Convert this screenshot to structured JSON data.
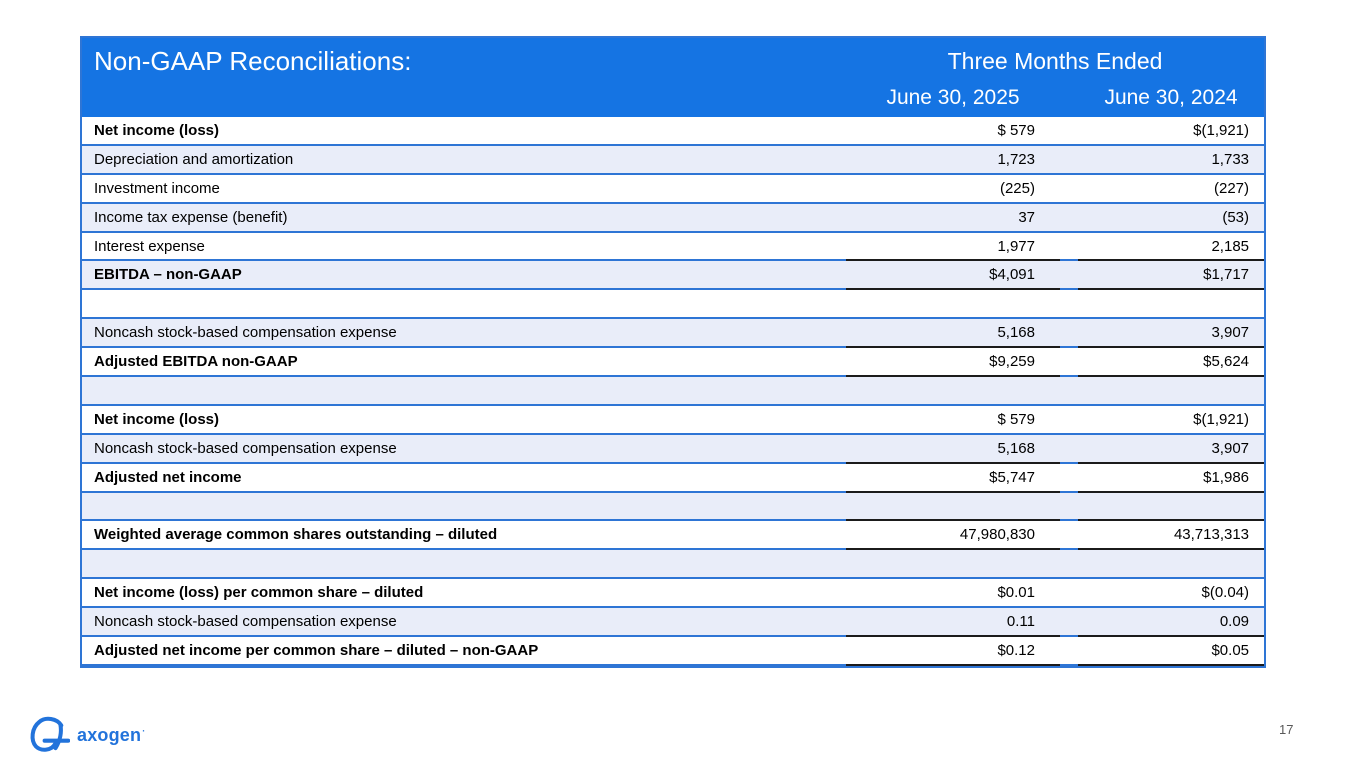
{
  "table": {
    "title": "Non-GAAP Reconciliations:",
    "period_header": "Three Months Ended",
    "columns": [
      "June 30, 2025",
      "June 30, 2024"
    ],
    "rows": [
      {
        "label": "Net income (loss)",
        "v2025": "$ 579",
        "v2024": "$(1,921)",
        "bold": true,
        "rule": false
      },
      {
        "label": "Depreciation and amortization",
        "v2025": "1,723",
        "v2024": "1,733",
        "bold": false,
        "rule": false
      },
      {
        "label": "Investment income",
        "v2025": "(225)",
        "v2024": "(227)",
        "bold": false,
        "rule": false
      },
      {
        "label": "Income tax expense (benefit)",
        "v2025": "37",
        "v2024": "(53)",
        "bold": false,
        "rule": false
      },
      {
        "label": "Interest expense",
        "v2025": "1,977",
        "v2024": "2,185",
        "bold": false,
        "rule": true
      },
      {
        "label": "EBITDA – non-GAAP",
        "v2025": "$4,091",
        "v2024": "$1,717",
        "bold": true,
        "rule": true
      },
      {
        "label": "",
        "v2025": "",
        "v2024": "",
        "bold": false,
        "rule": false
      },
      {
        "label": "Noncash stock-based compensation expense",
        "v2025": "5,168",
        "v2024": "3,907",
        "bold": false,
        "rule": true
      },
      {
        "label": "Adjusted EBITDA non-GAAP",
        "v2025": "$9,259",
        "v2024": "$5,624",
        "bold": true,
        "rule": true
      },
      {
        "label": "",
        "v2025": "",
        "v2024": "",
        "bold": false,
        "rule": false
      },
      {
        "label": "Net income (loss)",
        "v2025": "$ 579",
        "v2024": "$(1,921)",
        "bold": true,
        "rule": false
      },
      {
        "label": "Noncash stock-based compensation expense",
        "v2025": "5,168",
        "v2024": "3,907",
        "bold": false,
        "rule": true
      },
      {
        "label": "Adjusted net income",
        "v2025": "$5,747",
        "v2024": "$1,986",
        "bold": true,
        "rule": true
      },
      {
        "label": "",
        "v2025": "",
        "v2024": "",
        "bold": false,
        "rule": true
      },
      {
        "label": "Weighted average common shares outstanding – diluted",
        "v2025": "47,980,830",
        "v2024": "43,713,313",
        "bold": true,
        "rule": true
      },
      {
        "label": "",
        "v2025": "",
        "v2024": "",
        "bold": false,
        "rule": false
      },
      {
        "label": "Net income (loss) per common share – diluted",
        "v2025": "$0.01",
        "v2024": "$(0.04)",
        "bold": true,
        "rule": false
      },
      {
        "label": "Noncash stock-based compensation expense",
        "v2025": "0.11",
        "v2024": "0.09",
        "bold": false,
        "rule": true
      },
      {
        "label": "Adjusted net income per common share – diluted – non-GAAP",
        "v2025": "$0.12",
        "v2024": "$0.05",
        "bold": true,
        "rule": true
      }
    ]
  },
  "footer": {
    "logo_text": "axogen",
    "reg_mark": "·",
    "page_number": "17"
  },
  "colors": {
    "header_bg": "#1574e3",
    "table_line": "#2e75d5",
    "row_alt_fill": "#e9edf9",
    "subtotal_rule": "#1b1b1b",
    "brand_blue": "#2273db",
    "page_number_gray": "#595959"
  }
}
